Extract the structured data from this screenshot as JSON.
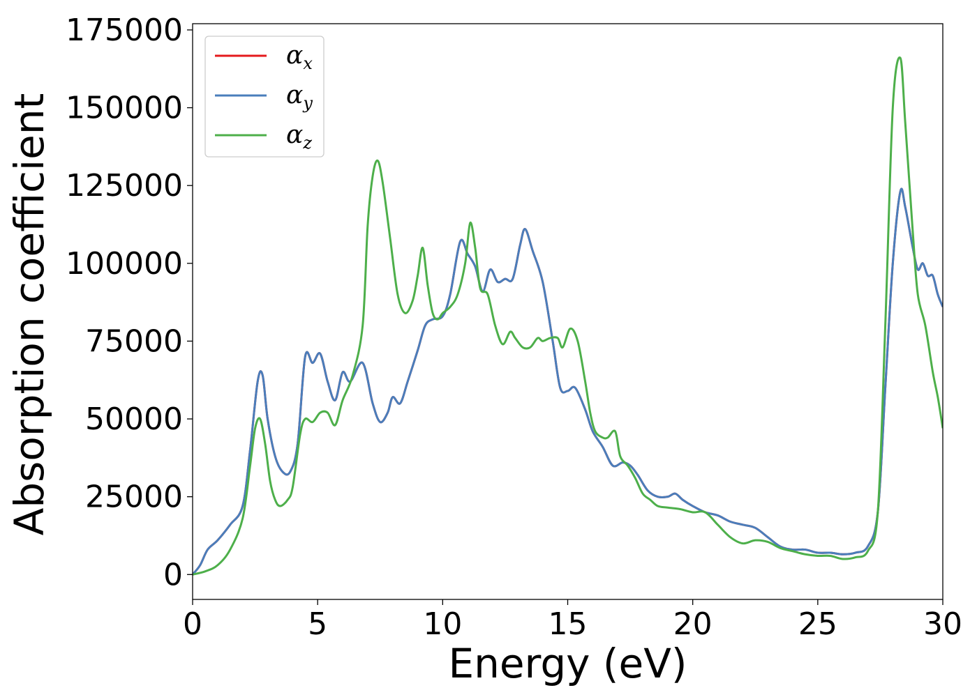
{
  "chart_data": {
    "type": "line",
    "title": "",
    "xlabel": "Energy (eV)",
    "ylabel": "Absorption coefficient",
    "xlim": [
      0,
      30
    ],
    "ylim": [
      -8000,
      177000
    ],
    "xticks": [
      0,
      5,
      10,
      15,
      20,
      25,
      30
    ],
    "xtick_labels": [
      "0",
      "5",
      "10",
      "15",
      "20",
      "25",
      "30"
    ],
    "yticks": [
      0,
      25000,
      50000,
      75000,
      100000,
      125000,
      150000,
      175000
    ],
    "ytick_labels": [
      "0",
      "25000",
      "50000",
      "75000",
      "100000",
      "125000",
      "150000",
      "175000"
    ],
    "grid": false,
    "legend_position": "top-left",
    "series": [
      {
        "name": "α_x",
        "label_main": "α",
        "label_sub": "x",
        "color": "#e41a1c",
        "x": [
          0,
          0.3,
          0.6,
          1.0,
          1.5,
          2.0,
          2.3,
          2.6,
          2.8,
          3.0,
          3.3,
          3.6,
          3.9,
          4.2,
          4.5,
          4.8,
          5.1,
          5.4,
          5.7,
          6.0,
          6.3,
          6.8,
          7.2,
          7.5,
          7.8,
          8.0,
          8.3,
          8.6,
          9.0,
          9.3,
          9.6,
          10.0,
          10.3,
          10.7,
          11.0,
          11.3,
          11.6,
          11.9,
          12.2,
          12.5,
          12.8,
          13.1,
          13.3,
          13.6,
          14.0,
          14.4,
          14.7,
          15.0,
          15.3,
          15.7,
          16.0,
          16.4,
          16.8,
          17.2,
          17.5,
          17.8,
          18.2,
          18.6,
          19.0,
          19.3,
          19.6,
          20.0,
          20.5,
          21.0,
          21.5,
          22.0,
          22.5,
          23.0,
          23.5,
          24.0,
          24.5,
          25.0,
          25.5,
          26.0,
          26.5,
          27.0,
          27.4,
          27.7,
          28.0,
          28.3,
          28.5,
          28.8,
          29.0,
          29.2,
          29.4,
          29.6,
          29.8,
          30.0
        ],
        "y": [
          0,
          3000,
          8000,
          11000,
          16000,
          22000,
          40000,
          62000,
          64000,
          50000,
          38000,
          33000,
          33000,
          42000,
          70000,
          68000,
          71000,
          62000,
          56000,
          65000,
          62000,
          68000,
          55000,
          49000,
          52000,
          57000,
          55000,
          62000,
          72000,
          80000,
          82000,
          83000,
          90000,
          107000,
          103000,
          99000,
          91000,
          98000,
          94000,
          95000,
          95000,
          106000,
          111000,
          104000,
          94000,
          75000,
          60000,
          59000,
          60000,
          53000,
          46000,
          41000,
          35000,
          36000,
          35000,
          32000,
          27000,
          25000,
          25000,
          26000,
          24000,
          22000,
          20000,
          19000,
          17000,
          16000,
          15000,
          12000,
          9000,
          8000,
          8000,
          7000,
          7000,
          6500,
          7000,
          9000,
          20000,
          60000,
          100000,
          123000,
          118000,
          105000,
          98000,
          100000,
          96000,
          96000,
          90000,
          86000
        ]
      },
      {
        "name": "α_y",
        "label_main": "α",
        "label_sub": "y",
        "color": "#4a7ebb",
        "x": [
          0,
          0.3,
          0.6,
          1.0,
          1.5,
          2.0,
          2.3,
          2.6,
          2.8,
          3.0,
          3.3,
          3.6,
          3.9,
          4.2,
          4.5,
          4.8,
          5.1,
          5.4,
          5.7,
          6.0,
          6.3,
          6.8,
          7.2,
          7.5,
          7.8,
          8.0,
          8.3,
          8.6,
          9.0,
          9.3,
          9.6,
          10.0,
          10.3,
          10.7,
          11.0,
          11.3,
          11.6,
          11.9,
          12.2,
          12.5,
          12.8,
          13.1,
          13.3,
          13.6,
          14.0,
          14.4,
          14.7,
          15.0,
          15.3,
          15.7,
          16.0,
          16.4,
          16.8,
          17.2,
          17.5,
          17.8,
          18.2,
          18.6,
          19.0,
          19.3,
          19.6,
          20.0,
          20.5,
          21.0,
          21.5,
          22.0,
          22.5,
          23.0,
          23.5,
          24.0,
          24.5,
          25.0,
          25.5,
          26.0,
          26.5,
          27.0,
          27.4,
          27.7,
          28.0,
          28.3,
          28.5,
          28.8,
          29.0,
          29.2,
          29.4,
          29.6,
          29.8,
          30.0
        ],
        "y": [
          0,
          3000,
          8000,
          11000,
          16000,
          22000,
          40000,
          62000,
          64000,
          50000,
          38000,
          33000,
          33000,
          42000,
          70000,
          68000,
          71000,
          62000,
          56000,
          65000,
          62000,
          68000,
          55000,
          49000,
          52000,
          57000,
          55000,
          62000,
          72000,
          80000,
          82000,
          83000,
          90000,
          107000,
          103000,
          99000,
          91000,
          98000,
          94000,
          95000,
          95000,
          106000,
          111000,
          104000,
          94000,
          75000,
          60000,
          59000,
          60000,
          53000,
          46000,
          41000,
          35000,
          36000,
          35000,
          32000,
          27000,
          25000,
          25000,
          26000,
          24000,
          22000,
          20000,
          19000,
          17000,
          16000,
          15000,
          12000,
          9000,
          8000,
          8000,
          7000,
          7000,
          6500,
          7000,
          9000,
          20000,
          60000,
          100000,
          123000,
          118000,
          105000,
          98000,
          100000,
          96000,
          96000,
          90000,
          86000
        ]
      },
      {
        "name": "α_z",
        "label_main": "α",
        "label_sub": "z",
        "color": "#4daf4a",
        "x": [
          0,
          0.5,
          1.0,
          1.5,
          2.0,
          2.3,
          2.5,
          2.7,
          2.9,
          3.1,
          3.3,
          3.5,
          3.8,
          4.0,
          4.3,
          4.5,
          4.8,
          5.1,
          5.4,
          5.7,
          6.0,
          6.4,
          6.8,
          7.0,
          7.2,
          7.4,
          7.6,
          7.9,
          8.2,
          8.5,
          8.8,
          9.0,
          9.2,
          9.4,
          9.6,
          9.8,
          10.0,
          10.3,
          10.6,
          10.9,
          11.1,
          11.3,
          11.5,
          11.8,
          12.1,
          12.4,
          12.7,
          12.9,
          13.2,
          13.5,
          13.8,
          14.0,
          14.3,
          14.6,
          14.8,
          15.1,
          15.4,
          15.7,
          15.9,
          16.1,
          16.4,
          16.6,
          16.9,
          17.1,
          17.4,
          17.7,
          18.0,
          18.3,
          18.6,
          19.0,
          19.5,
          20.0,
          20.5,
          21.0,
          21.5,
          22.0,
          22.5,
          23.0,
          23.5,
          24.0,
          24.5,
          25.0,
          25.5,
          26.0,
          26.5,
          27.0,
          27.4,
          27.7,
          28.0,
          28.3,
          28.5,
          28.8,
          29.0,
          29.3,
          29.6,
          29.8,
          30.0
        ],
        "y": [
          0,
          1000,
          3000,
          8000,
          18000,
          35000,
          47000,
          50000,
          42000,
          30000,
          24000,
          22000,
          24000,
          28000,
          45000,
          50000,
          49000,
          52000,
          52000,
          48000,
          56000,
          64000,
          80000,
          112000,
          128000,
          133000,
          126000,
          108000,
          90000,
          84000,
          88000,
          96000,
          105000,
          93000,
          84000,
          82000,
          84000,
          86000,
          90000,
          100000,
          113000,
          105000,
          92000,
          90000,
          80000,
          74000,
          78000,
          76000,
          73000,
          73000,
          76000,
          75000,
          76000,
          76000,
          73000,
          79000,
          75000,
          62000,
          52000,
          46000,
          44000,
          44000,
          46000,
          38000,
          35000,
          31000,
          26000,
          24000,
          22000,
          21500,
          21000,
          20000,
          20000,
          16000,
          12000,
          10000,
          11000,
          10500,
          8500,
          7500,
          6500,
          6000,
          6000,
          5000,
          5500,
          7500,
          20000,
          80000,
          150000,
          166000,
          145000,
          110000,
          90000,
          80000,
          65000,
          57000,
          47000
        ]
      }
    ]
  }
}
